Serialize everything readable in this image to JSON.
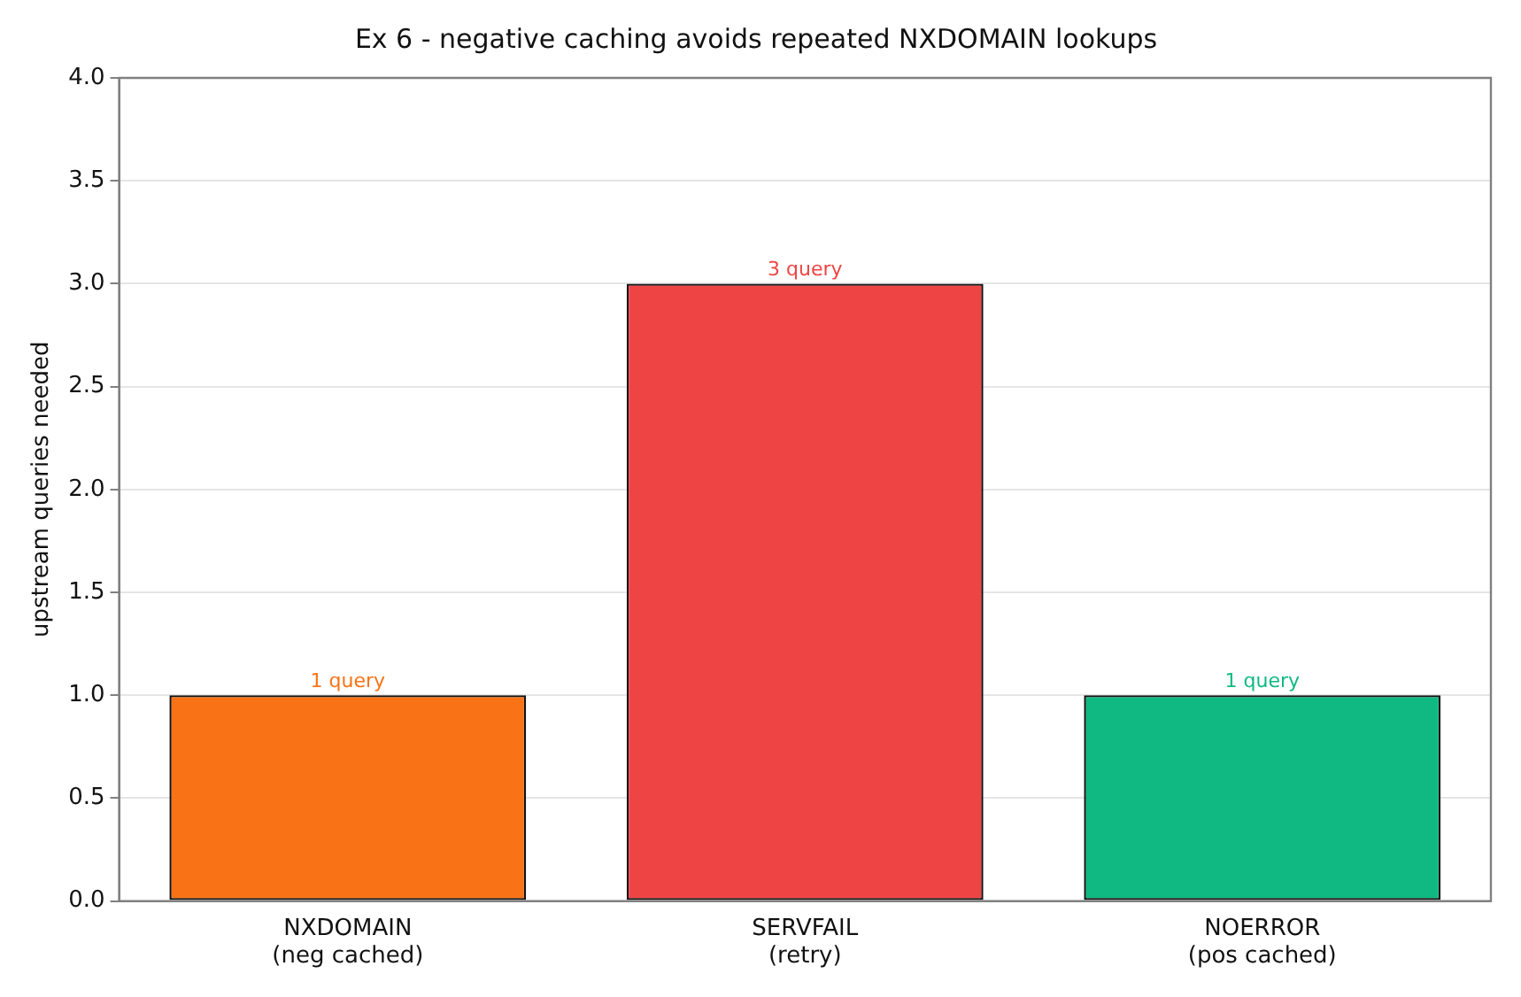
{
  "chart_data": {
    "type": "bar",
    "title": "Ex 6 - negative caching avoids repeated NXDOMAIN lookups",
    "ylabel": "upstream queries needed",
    "categories": [
      "NXDOMAIN\n(neg cached)",
      "SERVFAIL\n(retry)",
      "NOERROR\n(pos cached)"
    ],
    "values": [
      1,
      3,
      1
    ],
    "colors": [
      "#f97316",
      "#ef4444",
      "#10b981"
    ],
    "value_labels": [
      "1 query",
      "3 query",
      "1 query"
    ],
    "ylim": [
      0,
      4
    ],
    "yticks": [
      {
        "value": 0,
        "label": "0.0"
      },
      0.5,
      {
        "value": 1,
        "label": "1.0"
      },
      1.5,
      {
        "value": 2,
        "label": "2.0"
      },
      2.5,
      {
        "value": 3,
        "label": "3.0"
      },
      3.5,
      {
        "value": 4,
        "label": "4.0"
      }
    ],
    "grid": "y"
  }
}
